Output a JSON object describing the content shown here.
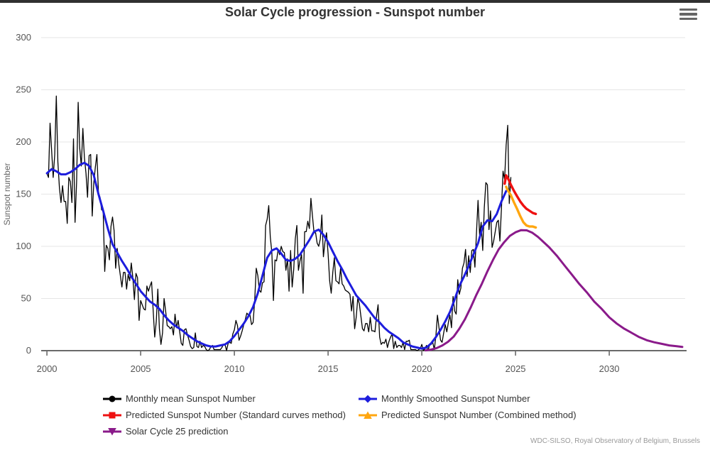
{
  "header": {
    "title": "Solar Cycle progression - Sunspot number"
  },
  "menu": {
    "icon": "hamburger-icon"
  },
  "credits": "WDC-SILSO, Royal Observatory of Belgium, Brussels",
  "chart_data": {
    "type": "line",
    "title": "Solar Cycle progression - Sunspot number",
    "xlabel": "",
    "ylabel": "Sunspot number",
    "x_range": [
      1999.77,
      2034.05
    ],
    "y_range": [
      0,
      300
    ],
    "x_ticks": [
      2000,
      2005,
      2010,
      2015,
      2020,
      2025,
      2030
    ],
    "y_ticks": [
      0,
      50,
      100,
      150,
      200,
      250,
      300
    ],
    "grid": "horizontal-only",
    "grid_color": "#e6e6e6",
    "axis_color": "#383838",
    "legend_position": "bottom",
    "series": [
      {
        "id": "monthly-mean",
        "name": "Monthly mean Sunspot Number",
        "color": "#000000",
        "width": 1.3,
        "marker": "circle",
        "start": 2000.0,
        "step": 0.0833333,
        "values": [
          170,
          166,
          218,
          192,
          166,
          188,
          244,
          181,
          156,
          142,
          158,
          143,
          143,
          122,
          166,
          162,
          142,
          203,
          123,
          162,
          238,
          194,
          177,
          213,
          185,
          170,
          147,
          187,
          188,
          129,
          161,
          176,
          188,
          151,
          147,
          135,
          134,
          76,
          101,
          98,
          87,
          119,
          128,
          115,
          79,
          98,
          83,
          72,
          61,
          75,
          75,
          59,
          73,
          67,
          84,
          70,
          49,
          74,
          70,
          29,
          48,
          44,
          40,
          39,
          62,
          57,
          62,
          66,
          39,
          13,
          28,
          59,
          21,
          6,
          17,
          50,
          38,
          24,
          23,
          21,
          23,
          15,
          35,
          22,
          29,
          18,
          7,
          5,
          20,
          21,
          15,
          10,
          4,
          2,
          3,
          17,
          4,
          3,
          9,
          3,
          5,
          4,
          1,
          0,
          1,
          4,
          5,
          1,
          1,
          1,
          1,
          1,
          3,
          6,
          6,
          0,
          7,
          8,
          7,
          16,
          20,
          29,
          24,
          10,
          14,
          19,
          25,
          30,
          36,
          34,
          34,
          25,
          27,
          48,
          79,
          72,
          58,
          56,
          65,
          66,
          120,
          126,
          139,
          109,
          94,
          48,
          87,
          86,
          97,
          92,
          100,
          95,
          94,
          77,
          88,
          57,
          96,
          61,
          78,
          107,
          120,
          77,
          86,
          92,
          55,
          114,
          114,
          124,
          117,
          146,
          129,
          113,
          113,
          103,
          100,
          107,
          130,
          90,
          104,
          113,
          93,
          67,
          55,
          75,
          89,
          67,
          66,
          64,
          79,
          64,
          62,
          58,
          57,
          56,
          54,
          38,
          52,
          21,
          32,
          50,
          45,
          33,
          21,
          19,
          26,
          26,
          18,
          32,
          19,
          19,
          18,
          33,
          44,
          13,
          6,
          8,
          7,
          11,
          3,
          9,
          13,
          16,
          2,
          9,
          3,
          5,
          5,
          3,
          8,
          1,
          9,
          9,
          10,
          1,
          1,
          1,
          1,
          0,
          1,
          2,
          6,
          0,
          2,
          5,
          0,
          6,
          6,
          8,
          1,
          14,
          34,
          22,
          10,
          8,
          17,
          25,
          18,
          27,
          34,
          22,
          52,
          38,
          35,
          68,
          54,
          60,
          79,
          84,
          97,
          71,
          91,
          75,
          96,
          97,
          80,
          113,
          144,
          111,
          123,
          96,
          137,
          161,
          159,
          116,
          134,
          99,
          105,
          114,
          123,
          125,
          105,
          137,
          172,
          164,
          197,
          216,
          141,
          166
        ]
      },
      {
        "id": "monthly-smoothed",
        "name": "Monthly Smoothed Sunspot Number",
        "color": "#1d1ddd",
        "width": 3,
        "marker": "diamond",
        "start": 2000.0,
        "step": 0.25,
        "values": [
          170,
          174,
          172,
          169,
          169,
          171,
          174,
          178,
          180,
          177,
          168,
          150,
          134,
          117,
          102,
          94,
          86,
          79,
          71,
          64,
          57,
          52,
          47,
          44,
          40,
          34,
          29,
          25,
          22,
          19,
          15,
          12,
          9,
          7,
          5,
          4,
          4,
          5,
          6,
          9,
          14,
          20,
          26,
          33,
          42,
          55,
          72,
          89,
          96,
          98,
          93,
          87,
          86,
          88,
          92,
          99,
          106,
          114,
          116,
          111,
          104,
          95,
          86,
          78,
          69,
          61,
          53,
          48,
          43,
          37,
          31,
          27,
          22,
          18,
          15,
          12,
          8,
          6,
          4,
          3,
          2,
          3,
          7,
          13,
          20,
          28,
          37,
          49,
          62,
          71,
          81,
          92,
          103,
          119,
          125,
          124,
          131,
          143,
          153
        ]
      },
      {
        "id": "predicted-standard",
        "name": "Predicted Sunspot Number (Standard curves method)",
        "color": "#ee1111",
        "width": 3.4,
        "marker": "square",
        "points": [
          [
            2024.42,
            160
          ],
          [
            2024.5,
            168
          ],
          [
            2024.63,
            164
          ],
          [
            2024.75,
            159
          ],
          [
            2024.92,
            153
          ],
          [
            2025.08,
            148
          ],
          [
            2025.25,
            143
          ],
          [
            2025.42,
            139
          ],
          [
            2025.58,
            136
          ],
          [
            2025.75,
            134
          ],
          [
            2025.92,
            132
          ],
          [
            2026.08,
            131
          ]
        ]
      },
      {
        "id": "predicted-combined",
        "name": "Predicted Sunspot Number (Combined method)",
        "color": "#ffa60f",
        "width": 3.4,
        "marker": "triangle-up",
        "points": [
          [
            2024.5,
            157
          ],
          [
            2024.58,
            154
          ],
          [
            2024.75,
            149
          ],
          [
            2024.92,
            142
          ],
          [
            2025.08,
            136
          ],
          [
            2025.25,
            129
          ],
          [
            2025.42,
            123
          ],
          [
            2025.58,
            120
          ],
          [
            2025.75,
            119
          ],
          [
            2025.92,
            119
          ],
          [
            2026.08,
            118
          ]
        ]
      },
      {
        "id": "cycle25-prediction",
        "name": "Solar Cycle 25 prediction",
        "color": "#8a1a8a",
        "width": 3,
        "marker": "triangle-down",
        "points": [
          [
            2020.2,
            0.3
          ],
          [
            2020.5,
            1
          ],
          [
            2020.8,
            2.5
          ],
          [
            2021.1,
            5
          ],
          [
            2021.4,
            8.5
          ],
          [
            2021.7,
            13.5
          ],
          [
            2022.0,
            21
          ],
          [
            2022.3,
            30
          ],
          [
            2022.6,
            41
          ],
          [
            2022.9,
            53
          ],
          [
            2023.2,
            64
          ],
          [
            2023.5,
            76
          ],
          [
            2023.8,
            87
          ],
          [
            2024.1,
            97
          ],
          [
            2024.4,
            104
          ],
          [
            2024.7,
            110
          ],
          [
            2025.0,
            113.5
          ],
          [
            2025.3,
            115.5
          ],
          [
            2025.6,
            115.3
          ],
          [
            2025.9,
            113
          ],
          [
            2026.2,
            109
          ],
          [
            2026.5,
            104
          ],
          [
            2026.8,
            99
          ],
          [
            2027.2,
            91
          ],
          [
            2027.6,
            82
          ],
          [
            2028.0,
            73
          ],
          [
            2028.4,
            64
          ],
          [
            2028.8,
            56
          ],
          [
            2029.2,
            47
          ],
          [
            2029.6,
            40
          ],
          [
            2030.0,
            32
          ],
          [
            2030.4,
            26
          ],
          [
            2030.8,
            21
          ],
          [
            2031.2,
            17
          ],
          [
            2031.6,
            13
          ],
          [
            2032.0,
            10
          ],
          [
            2032.4,
            8
          ],
          [
            2032.8,
            6.5
          ],
          [
            2033.2,
            5
          ],
          [
            2033.6,
            4.2
          ],
          [
            2033.9,
            3.6
          ]
        ]
      }
    ]
  }
}
